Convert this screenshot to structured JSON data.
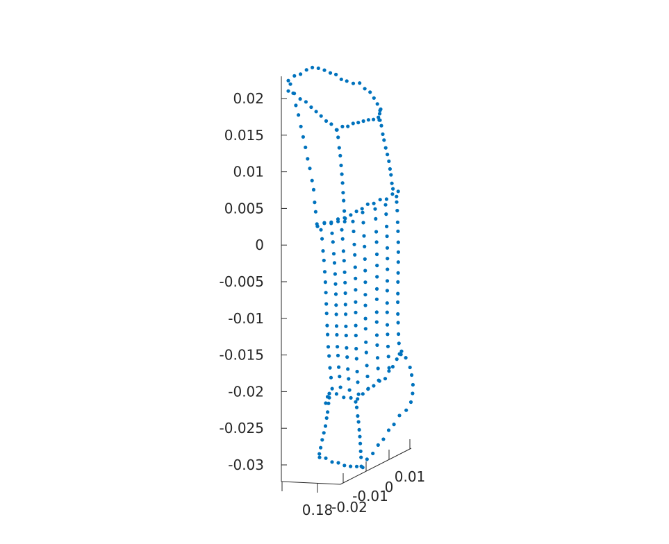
{
  "chart_data": {
    "type": "scatter",
    "projection": "3d",
    "title": "",
    "xlabel": "",
    "ylabel": "",
    "zlabel": "",
    "grid": false,
    "marker_color": "#0072BD",
    "x_axis": {
      "ticks": [
        0.18
      ]
    },
    "y_axis": {
      "ticks": [
        -0.02,
        -0.01,
        0,
        0.01
      ]
    },
    "z_axis": {
      "ticks": [
        0.02,
        0.015,
        0.01,
        0.005,
        0,
        -0.005,
        -0.01,
        -0.015,
        -0.02,
        -0.025,
        -0.03
      ],
      "range": [
        -0.032,
        0.0225
      ]
    },
    "tick_labels": {
      "x": [
        "0.18"
      ],
      "y": [
        "-0.02",
        "-0.01",
        "0",
        "0.01"
      ],
      "z": [
        "0.02",
        "0.015",
        "0.01",
        "0.005",
        "0",
        "-0.005",
        "-0.01",
        "-0.015",
        "-0.02",
        "-0.025",
        "-0.03"
      ]
    },
    "point_cloud": {
      "description_of_shape": "sampled points on the surface of a bone-like object",
      "y_range": [
        -0.02,
        0.015
      ],
      "z_range": [
        -0.031,
        0.024
      ]
    }
  }
}
